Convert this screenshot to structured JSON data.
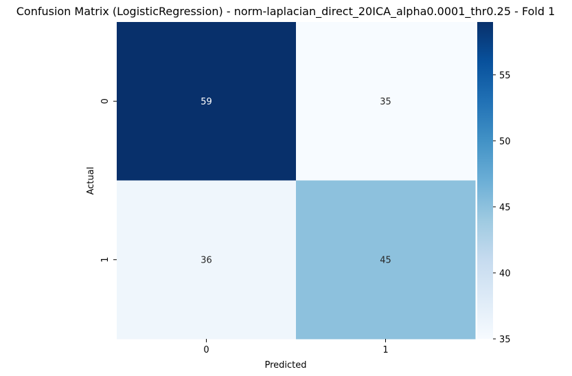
{
  "chart_data": {
    "type": "heatmap",
    "title": "Confusion Matrix (LogisticRegression) - norm-laplacian_direct_20ICA_alpha0.0001_thr0.25 - Fold 1",
    "xlabel": "Predicted",
    "ylabel": "Actual",
    "x_categories": [
      "0",
      "1"
    ],
    "y_categories": [
      "0",
      "1"
    ],
    "values": [
      [
        59,
        35
      ],
      [
        36,
        45
      ]
    ],
    "colormap": "Blues",
    "colorbar": {
      "range": [
        35,
        59
      ],
      "ticks": [
        35,
        40,
        45,
        50,
        55
      ]
    }
  }
}
